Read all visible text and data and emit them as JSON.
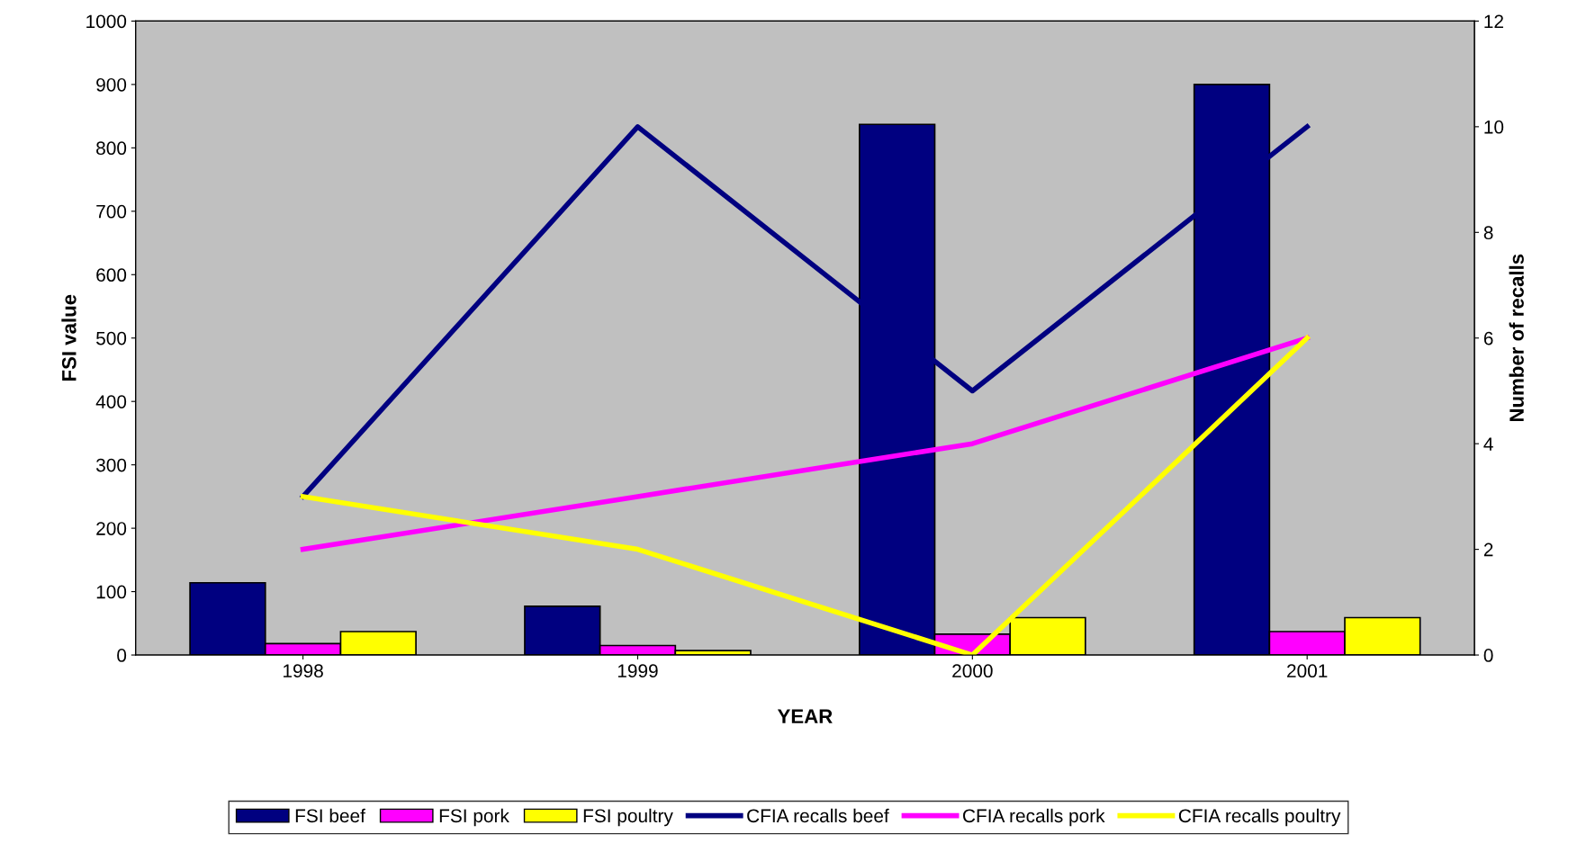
{
  "chart_data": {
    "type": "bar",
    "xlabel": "YEAR",
    "ylabel": "FSI value",
    "y2label": "Number of recalls",
    "categories": [
      "1998",
      "1999",
      "2000",
      "2001"
    ],
    "series": [
      {
        "name": "FSI beef",
        "color": "#000080",
        "values": [
          114,
          77,
          837,
          900
        ]
      },
      {
        "name": "FSI pork",
        "color": "#ff00ff",
        "values": [
          18,
          15,
          33,
          37
        ]
      },
      {
        "name": "FSI poultry",
        "color": "#ffff00",
        "values": [
          37,
          7,
          59,
          59
        ]
      },
      {
        "name": "CFIA recalls beef",
        "type": "line",
        "axis": "y2",
        "color": "#000080",
        "values": [
          3,
          10,
          5,
          10
        ]
      },
      {
        "name": "CFIA recalls pork",
        "type": "line",
        "axis": "y2",
        "color": "#ff00ff",
        "values": [
          2,
          3,
          4,
          6
        ]
      },
      {
        "name": "CFIA recalls poultry",
        "type": "line",
        "axis": "y2",
        "color": "#ffff00",
        "values": [
          3,
          2,
          0,
          6
        ]
      }
    ],
    "ylim": [
      0,
      1000
    ],
    "yticks": [
      0,
      100,
      200,
      300,
      400,
      500,
      600,
      700,
      800,
      900,
      1000
    ],
    "y2lim": [
      0,
      12
    ],
    "y2ticks": [
      0,
      2,
      4,
      6,
      8,
      10,
      12
    ],
    "legend": "bottom",
    "grid": false,
    "marker": "none",
    "line_style": "solid"
  }
}
